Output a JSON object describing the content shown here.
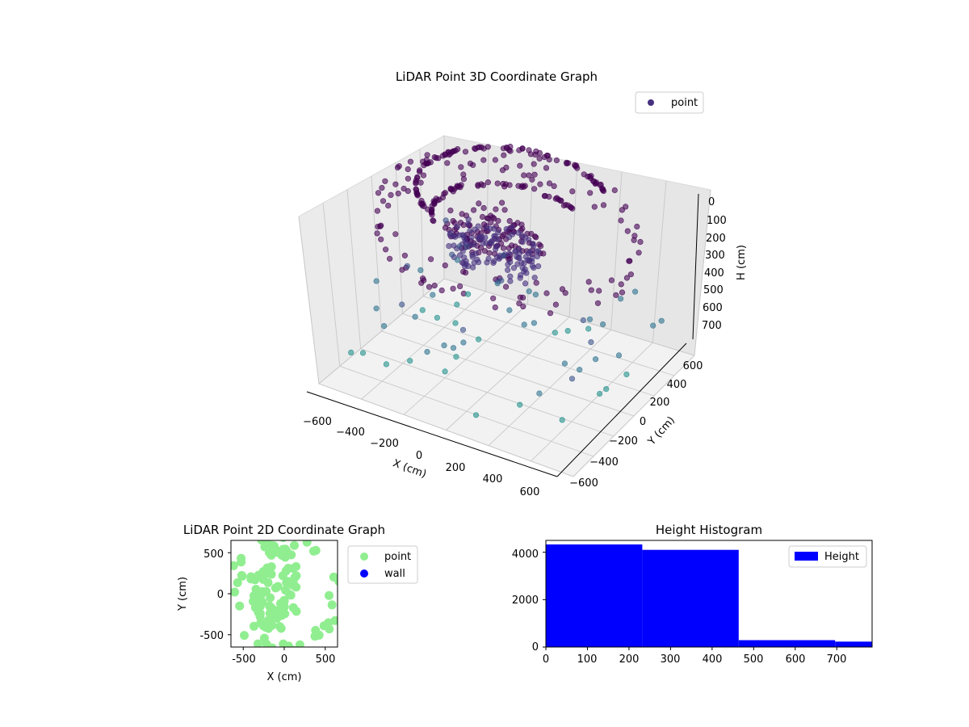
{
  "colors": {
    "violet_dark": "#440154",
    "violet": "#46307e",
    "indigo": "#3b528b",
    "slate": "#55679b",
    "teal": "#21918c",
    "seafoam": "#5ec962",
    "yellow": "#fde725",
    "light_green": "#90ee90",
    "blue": "#0000ff"
  },
  "chart_data": [
    {
      "type": "scatter",
      "title": "LiDAR Point 3D Coordinate Graph",
      "xlabel": "X (cm)",
      "ylabel": "Y (cm)",
      "zlabel": "H (cm)",
      "legend": {
        "placement": "top-right",
        "entries": [
          {
            "label": "point",
            "color": "#46307e"
          }
        ]
      },
      "xlim": [
        -700,
        700
      ],
      "ylim": [
        -700,
        700
      ],
      "zlim": [
        0,
        780
      ],
      "z_inverted": true,
      "x_ticks": [
        "−600",
        "−400",
        "−200",
        "0",
        "200",
        "400",
        "600"
      ],
      "y_ticks": [
        "−600",
        "−400",
        "−200",
        "0",
        "200",
        "400",
        "600"
      ],
      "z_ticks": [
        "0",
        "100",
        "200",
        "300",
        "400",
        "500",
        "600",
        "700"
      ],
      "colormap": "viridis",
      "grid": true,
      "series": [
        {
          "name": "point",
          "clusters": [
            {
              "shape": "blob",
              "center": [
                -150,
                150,
                250
              ],
              "rx": 260,
              "ry": 220,
              "h_spread": 120,
              "count": 230
            },
            {
              "shape": "arc",
              "center": [
                -100,
                250,
                60
              ],
              "radius": 480,
              "from_deg": 45,
              "to_deg": 235,
              "count": 90
            },
            {
              "shape": "arc",
              "center": [
                -100,
                200,
                160
              ],
              "radius": 380,
              "from_deg": 60,
              "to_deg": 220,
              "count": 60
            },
            {
              "shape": "ring",
              "center": [
                0,
                0,
                0
              ],
              "radius": 650,
              "count": 110
            },
            {
              "shape": "scatter",
              "h_range": [
                400,
                780
              ],
              "count": 60
            }
          ]
        }
      ]
    },
    {
      "type": "scatter",
      "title": "LiDAR Point 2D Coordinate Graph",
      "xlabel": "X (cm)",
      "ylabel": "Y (cm)",
      "xlim": [
        -650,
        650
      ],
      "ylim": [
        -650,
        650
      ],
      "x_ticks": [
        -500,
        0,
        500
      ],
      "y_ticks": [
        500,
        0,
        -500
      ],
      "legend": {
        "placement": "right",
        "entries": [
          {
            "label": "point",
            "color": "#90ee90"
          },
          {
            "label": "wall",
            "color": "#0000ff"
          }
        ]
      },
      "series": [
        {
          "name": "point",
          "blob_center": [
            -120,
            50
          ],
          "blob_rx": 300,
          "blob_ry": 600,
          "blob_count": 90,
          "ring_radius": 620,
          "ring_count": 40
        },
        {
          "name": "wall",
          "values": []
        }
      ]
    },
    {
      "type": "bar",
      "title": "Height Histogram",
      "xlabel": "",
      "ylabel": "",
      "bins": [
        {
          "x0": 0,
          "x1": 232,
          "count": 4330
        },
        {
          "x0": 232,
          "x1": 464,
          "count": 4100
        },
        {
          "x0": 464,
          "x1": 696,
          "count": 290
        },
        {
          "x0": 696,
          "x1": 785,
          "count": 230
        }
      ],
      "xlim": [
        0,
        785
      ],
      "ylim": [
        0,
        4500
      ],
      "x_ticks": [
        0,
        100,
        200,
        300,
        400,
        500,
        600,
        700
      ],
      "y_ticks": [
        0,
        2000,
        4000
      ],
      "color": "#0000ff",
      "legend": {
        "placement": "top-right",
        "entries": [
          {
            "label": "Height",
            "color": "#0000ff"
          }
        ]
      }
    }
  ]
}
